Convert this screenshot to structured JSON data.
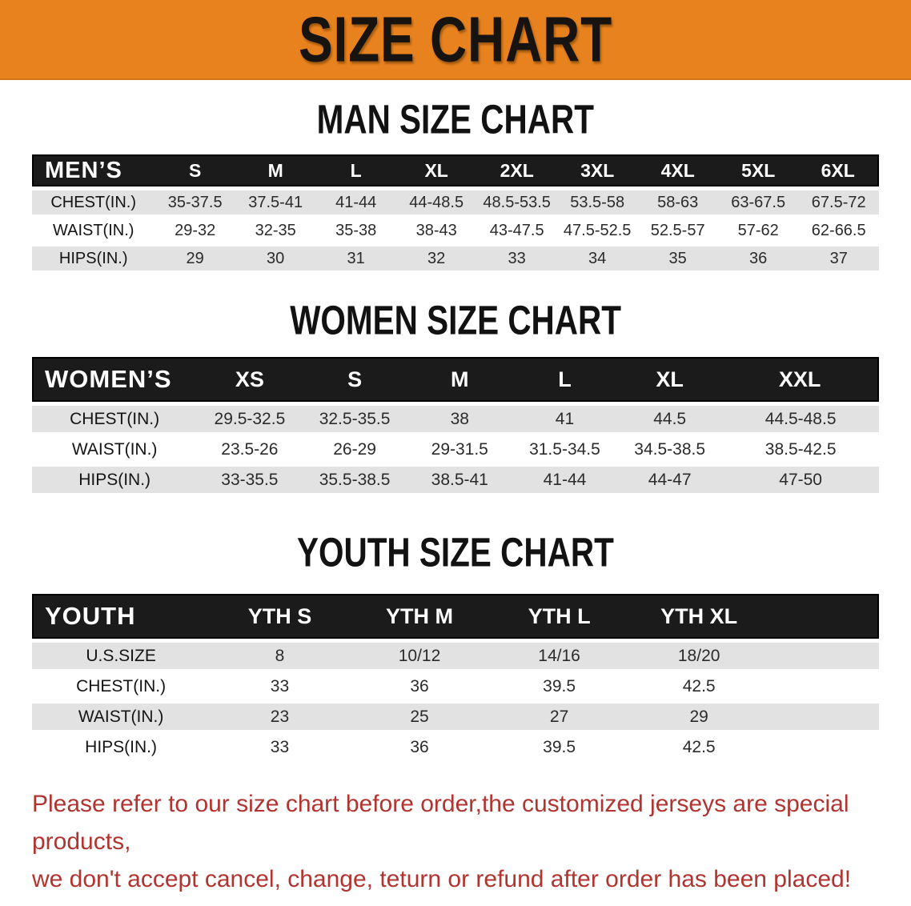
{
  "banner": {
    "title": "SIZE CHART",
    "bg_color": "#E8821E",
    "text_color": "#161310"
  },
  "sections": [
    {
      "heading": "MAN SIZE CHART",
      "corner": "MEN’S",
      "columns": [
        "S",
        "M",
        "L",
        "XL",
        "2XL",
        "3XL",
        "4XL",
        "5XL",
        "6XL"
      ],
      "rows": [
        {
          "label": "CHEST(IN.)",
          "values": [
            "35-37.5",
            "37.5-41",
            "41-44",
            "44-48.5",
            "48.5-53.5",
            "53.5-58",
            "58-63",
            "63-67.5",
            "67.5-72"
          ]
        },
        {
          "label": "WAIST(IN.)",
          "values": [
            "29-32",
            "32-35",
            "35-38",
            "38-43",
            "43-47.5",
            "47.5-52.5",
            "52.5-57",
            "57-62",
            "62-66.5"
          ]
        },
        {
          "label": "HIPS(IN.)",
          "values": [
            "29",
            "30",
            "31",
            "32",
            "33",
            "34",
            "35",
            "36",
            "37"
          ]
        }
      ]
    },
    {
      "heading": "WOMEN SIZE CHART",
      "corner": "WOMEN’S",
      "columns": [
        "XS",
        "S",
        "M",
        "L",
        "XL",
        "XXL"
      ],
      "rows": [
        {
          "label": "CHEST(IN.)",
          "values": [
            "29.5-32.5",
            "32.5-35.5",
            "38",
            "41",
            "44.5",
            "44.5-48.5"
          ]
        },
        {
          "label": "WAIST(IN.)",
          "values": [
            "23.5-26",
            "26-29",
            "29-31.5",
            "31.5-34.5",
            "34.5-38.5",
            "38.5-42.5"
          ]
        },
        {
          "label": "HIPS(IN.)",
          "values": [
            "33-35.5",
            "35.5-38.5",
            "38.5-41",
            "41-44",
            "44-47",
            "47-50"
          ]
        }
      ]
    },
    {
      "heading": "YOUTH SIZE CHART",
      "corner": "YOUTH",
      "columns": [
        "YTH S",
        "YTH M",
        "YTH L",
        "YTH XL"
      ],
      "rows": [
        {
          "label": "U.S.SIZE",
          "values": [
            "8",
            "10/12",
            "14/16",
            "18/20"
          ]
        },
        {
          "label": "CHEST(IN.)",
          "values": [
            "33",
            "36",
            "39.5",
            "42.5"
          ]
        },
        {
          "label": "WAIST(IN.)",
          "values": [
            "23",
            "25",
            "27",
            "29"
          ]
        },
        {
          "label": "HIPS(IN.)",
          "values": [
            "33",
            "36",
            "39.5",
            "42.5"
          ]
        }
      ]
    }
  ],
  "footer": {
    "line1": "Please refer to our size chart before order,the customized jerseys are special products,",
    "line2": "we don't accept cancel, change, teturn or refund after order has been placed!",
    "text_color": "#B13430"
  },
  "colors": {
    "header_band": "#1B1B1B",
    "row_stripe": "#E2E2E2"
  }
}
